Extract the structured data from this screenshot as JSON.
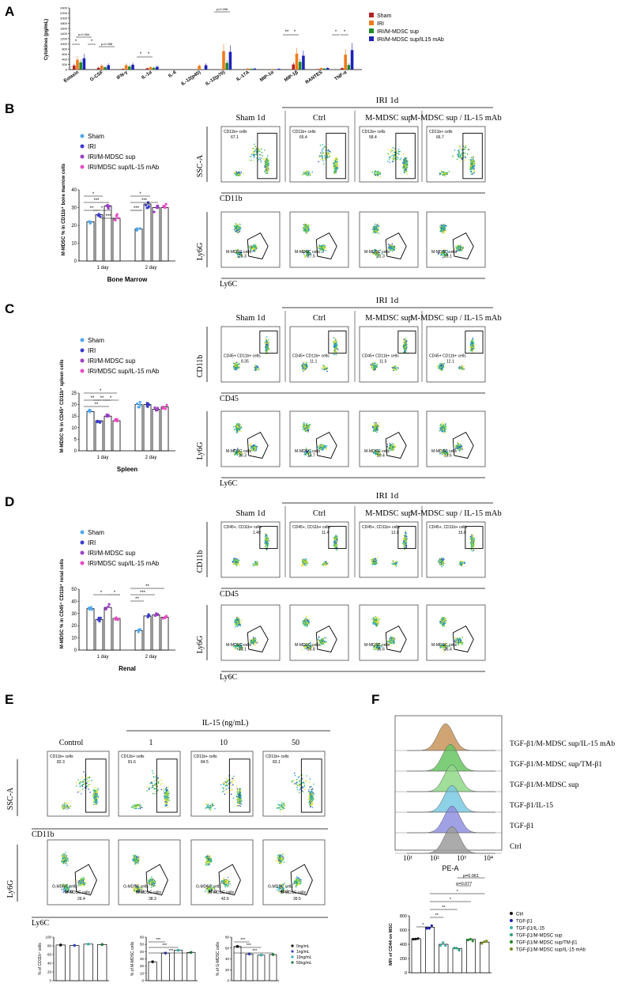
{
  "panels": {
    "A": "A",
    "B": "B",
    "C": "C",
    "D": "D",
    "E": "E",
    "F": "F"
  },
  "panelA": {
    "chart_data": {
      "type": "bar",
      "ylabel": "Cytokines (pg/mL)",
      "yticks": [
        "0",
        "200",
        "400",
        "600",
        "800",
        "1000",
        "1200",
        "1400",
        "1600",
        "1800",
        "2000",
        "2200",
        "2400"
      ],
      "ylim": [
        0,
        2400
      ],
      "categories": [
        "Eotaxin",
        "G-CSF",
        "IFN-γ",
        "IL-1α",
        "IL-6",
        "IL-12(p40)",
        "IL-12(p70)",
        "IL-17A",
        "MIP-1α",
        "MIP-1β",
        "RANTES",
        "TNF-α"
      ],
      "series": [
        {
          "name": "Sham",
          "color": "#b22222",
          "values": [
            160,
            70,
            30,
            50,
            0,
            0,
            0,
            0,
            0,
            200,
            20,
            60
          ]
        },
        {
          "name": "IRI",
          "color": "#f07a1a",
          "values": [
            380,
            150,
            170,
            90,
            0,
            150,
            720,
            40,
            20,
            620,
            60,
            580
          ]
        },
        {
          "name": "IRI/M-MDSC sup",
          "color": "#1f8a2c",
          "values": [
            280,
            90,
            120,
            70,
            0,
            0,
            260,
            30,
            0,
            300,
            40,
            180
          ]
        },
        {
          "name": "IRI/M-MDSC sup/IL15 mAb",
          "color": "#1d22b8",
          "values": [
            440,
            170,
            190,
            110,
            0,
            170,
            690,
            40,
            30,
            540,
            60,
            760
          ]
        }
      ],
      "annotations": [
        "p=0.064",
        "p=0.058",
        "p=0.098",
        "**",
        "*"
      ]
    }
  },
  "legendB": [
    "Sham",
    "IRI",
    "IRI/M-MDSC sup",
    "IRI/MDSC sup/IL-15 mAb"
  ],
  "legendC": [
    "Sham",
    "IRI",
    "IRI/M-MDSC sup",
    "IRI/MDSC sup/IL-15 mAb"
  ],
  "legendD": [
    "Sham",
    "IRI",
    "IRI/M-MDSC sup",
    "IRI/MDSC sup/IL-15 mAb"
  ],
  "legendColors": [
    "#4fa8f2",
    "#3b3bd0",
    "#9b3fc6",
    "#e84ac6"
  ],
  "panelB": {
    "chart_data": {
      "type": "bar",
      "title": "Bone Marrow",
      "ylabel": "M-MDSC % in CD11b⁺ bone marrow cells",
      "categories": [
        "1 day",
        "2 day"
      ],
      "yticks": [
        "0",
        "10",
        "20",
        "30",
        "40"
      ],
      "ylim": [
        0,
        40
      ],
      "series": [
        {
          "name": "Sham",
          "values": [
            22,
            18
          ]
        },
        {
          "name": "IRI",
          "values": [
            26,
            32
          ]
        },
        {
          "name": "IRI/M-MDSC sup",
          "values": [
            31,
            30
          ]
        },
        {
          "name": "IRI/MDSC sup/IL-15 mAb",
          "values": [
            24,
            30
          ]
        }
      ],
      "sig": [
        "*",
        "***",
        "**",
        "*",
        "***",
        "*",
        "***",
        "***"
      ]
    },
    "header": "IRI 1d",
    "columns": [
      "Sham 1d",
      "Ctrl",
      "M-MDSC sup",
      "M-MDSC sup / IL-15 mAb"
    ],
    "row1_axis_y": "SSC-A",
    "row1_axis_x": "CD11b",
    "row2_axis_y": "Ly6G",
    "row2_axis_x": "Ly6C",
    "gate1_label": "CD11b+ cells",
    "gate1_values": [
      "67.1",
      "65.4",
      "58.4",
      "66.7"
    ],
    "gate2_label": "M-MDSC cells",
    "gate2_values": [
      "25.3",
      "27.5",
      "31.3",
      "25.1"
    ]
  },
  "panelC": {
    "chart_data": {
      "type": "bar",
      "title": "Spleen",
      "ylabel": "M-MDSC % in CD45⁺ CD11b⁺ spleen cells",
      "categories": [
        "1 day",
        "2 day"
      ],
      "yticks": [
        "0",
        "5",
        "10",
        "15",
        "20",
        "25"
      ],
      "ylim": [
        0,
        25
      ],
      "series": [
        {
          "name": "Sham",
          "values": [
            17,
            20
          ]
        },
        {
          "name": "IRI",
          "values": [
            13,
            20
          ]
        },
        {
          "name": "IRI/M-MDSC sup",
          "values": [
            15,
            18
          ]
        },
        {
          "name": "IRI/MDSC sup/IL-15 mAb",
          "values": [
            13,
            19
          ]
        }
      ],
      "sig": [
        "*",
        "**",
        "**",
        "*",
        "**"
      ]
    },
    "header": "IRI 1d",
    "columns": [
      "Sham 1d",
      "Ctrl",
      "M-MDSC sup",
      "M-MDSC sup / IL-15 mAb"
    ],
    "row1_axis_y": "CD11b",
    "row1_axis_x": "CD45",
    "row2_axis_y": "Ly6G",
    "row2_axis_x": "Ly6C",
    "gate1_label": "CD45+ CD11b+ cells",
    "gate1_values": [
      "8.35",
      "11.1",
      "11.5",
      "12.1"
    ],
    "gate2_label": "M-MDSC cells",
    "gate2_values": [
      "20.3",
      "13.7",
      "20.4",
      "13.6"
    ]
  },
  "panelD": {
    "chart_data": {
      "type": "bar",
      "title": "Renal",
      "ylabel": "M-MDSC % in CD45⁺ CD11b⁺ renal cells",
      "categories": [
        "1 day",
        "2 day"
      ],
      "yticks": [
        "0",
        "10",
        "20",
        "30",
        "40",
        "50"
      ],
      "ylim": [
        0,
        50
      ],
      "series": [
        {
          "name": "Sham",
          "values": [
            34,
            16
          ]
        },
        {
          "name": "IRI",
          "values": [
            25,
            28
          ]
        },
        {
          "name": "IRI/M-MDSC sup",
          "values": [
            35,
            29
          ]
        },
        {
          "name": "IRI/MDSC sup/IL-15 mAb",
          "values": [
            26,
            27
          ]
        }
      ],
      "sig": [
        "*",
        "*",
        "**",
        "***",
        "**"
      ]
    },
    "header": "IRI 1d",
    "columns": [
      "Sham 1d",
      "Ctrl",
      "M-MDSC sup",
      "M-MDSC sup / IL-15 mAb"
    ],
    "row1_axis_y": "CD11b",
    "row1_axis_x": "CD45",
    "row2_axis_y": "Ly6G",
    "row2_axis_x": "Ly6C",
    "gate1_label": "CD45+, CD11b+ cells",
    "gate1_values": [
      "1.40",
      "11.4",
      "12.0",
      "15.0"
    ],
    "gate2_label": "M-MDSC cells",
    "gate2_values": [
      "39.1",
      "26.8",
      "35.6",
      "25.4"
    ]
  },
  "panelE": {
    "header": "IL-15 (ng/mL)",
    "columns": [
      "Control",
      "1",
      "10",
      "50"
    ],
    "row1_axis_y": "SSC-A",
    "row1_axis_x": "CD11b",
    "row2_axis_y": "Ly6G",
    "row2_axis_x": "Ly6C",
    "gate1_label": "CD11b+ cells",
    "gate1_values": [
      "82.3",
      "81.6",
      "84.5",
      "83.1"
    ],
    "gmdsc_label": "G-MDSC cells",
    "gmdsc_values": [
      "64.0",
      "49.9",
      "47.0",
      "49.2"
    ],
    "mmdsc_label": "M-MDSC cells",
    "mmdsc_values": [
      "26.4",
      "38.3",
      "42.6",
      "39.5"
    ],
    "xaxis_label1": "DAPI-A :: BV421",
    "xaxis_label2": "APC-A :: LY6C",
    "legend": [
      "0ng/mL",
      "1ng/mL",
      "10ng/mL",
      "50ng/mL"
    ],
    "legend_colors": [
      "#111111",
      "#3a46c8",
      "#35b0a8",
      "#1f7a3a"
    ],
    "chart_data": [
      {
        "type": "bar",
        "ylabel": "% of CD11b⁺ cells",
        "yticks": [
          "0",
          "20",
          "40",
          "60",
          "80",
          "100"
        ],
        "ylim": [
          0,
          100
        ],
        "values": [
          82,
          81,
          84,
          83
        ],
        "sig": []
      },
      {
        "type": "bar",
        "ylabel": "% of M-MDSC cells",
        "yticks": [
          "0",
          "10",
          "20",
          "30",
          "40",
          "50",
          "60"
        ],
        "ylim": [
          0,
          60
        ],
        "values": [
          26,
          38,
          42,
          39
        ],
        "sig": [
          "***",
          "***",
          "***"
        ]
      },
      {
        "type": "bar",
        "ylabel": "% of G-MDSC cells",
        "yticks": [
          "0",
          "20",
          "40",
          "60",
          "80"
        ],
        "ylim": [
          0,
          80
        ],
        "values": [
          63,
          49,
          47,
          48
        ],
        "sig": [
          "***",
          "***",
          "***"
        ]
      }
    ]
  },
  "panelF": {
    "histogram_labels": [
      "TGF-β1/M-MDSC sup/IL-15 mAb",
      "TGF-β1/M-MDSC sup/TM-β1",
      "TGF-β1/M-MDSC sup",
      "TGF-β1/IL-15",
      "TGF-β1",
      "Ctrl"
    ],
    "histogram_colors": [
      "#c8955a",
      "#66c462",
      "#8fd887",
      "#79c9e2",
      "#8f8fe0",
      "#9c9c9c"
    ],
    "xlabel": "PE-A",
    "xticks": [
      "10¹",
      "10²",
      "10³",
      "10⁴"
    ],
    "chart_data": {
      "type": "bar",
      "ylabel": "MFI of CD44 on MSC",
      "yticks": [
        "0",
        "200",
        "400",
        "600",
        "800"
      ],
      "ylim": [
        0,
        800
      ],
      "categories": [
        "Ctrl",
        "TGF-β1",
        "TGF-β1/IL-15",
        "TGF-β1/M-MDSC sup",
        "TGF-β1/M-MDSC sup/TM-β1",
        "TGF-β1/M-MDSC sup/IL-15 mAb"
      ],
      "values": [
        480,
        640,
        400,
        340,
        470,
        430
      ],
      "colors": [
        "#111111",
        "#1d22b8",
        "#35b0a8",
        "#2aa07a",
        "#1f8a2c",
        "#7a8a1f"
      ],
      "sig": [
        "*",
        "**",
        "**",
        "*",
        "*",
        "p=0.077",
        "p=0.061"
      ]
    }
  }
}
